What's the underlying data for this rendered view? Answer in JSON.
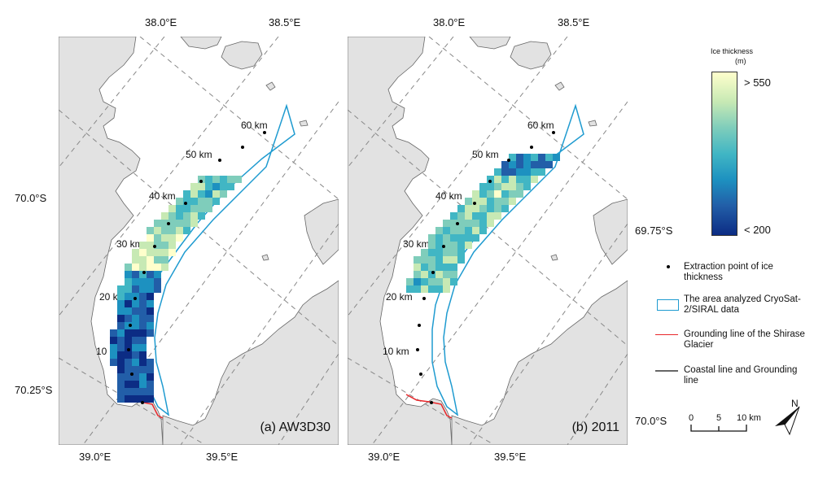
{
  "coordinates": {
    "lon_38_0": "38.0°E",
    "lon_38_5": "38.5°E",
    "lon_39_0": "39.0°E",
    "lon_39_5": "39.5°E",
    "lat_70_0": "70.0°S",
    "lat_69_75": "69.75°S",
    "lat_70_25": "70.25°S",
    "lat_70_0_b": "70.0°S"
  },
  "km_labels": [
    "60 km",
    "50 km",
    "40 km",
    "30 km",
    "20 km",
    "10 km"
  ],
  "panels": [
    {
      "label": "(a) AW3D30"
    },
    {
      "label": "(b) 2011"
    }
  ],
  "colorbar": {
    "title": "Ice thickness",
    "unit": "(m)",
    "max_label": "> 550",
    "min_label": "< 200",
    "colors": [
      "#ffffcc",
      "#c7e9b4",
      "#7fcdbb",
      "#41b6c4",
      "#1d91c0",
      "#225ea8",
      "#0c2c84"
    ]
  },
  "legend": {
    "extraction_point": "Extraction point of ice thickness",
    "analyzed_area": "The area analyzed CryoSat-2/SIRAL data",
    "grounding_line": "Grounding line of the Shirase Glacier",
    "coastal_line": "Coastal line and Grounding line"
  },
  "scalebar": {
    "ticks": [
      "0",
      "5",
      "10 km"
    ]
  },
  "north_arrow": {
    "label": "N"
  },
  "colors": {
    "land": "#e2e2e2",
    "graticule": "#888888",
    "analyzed_area": "#1f9bd0",
    "grounding_line": "#e8262a",
    "coastline": "#666666"
  }
}
